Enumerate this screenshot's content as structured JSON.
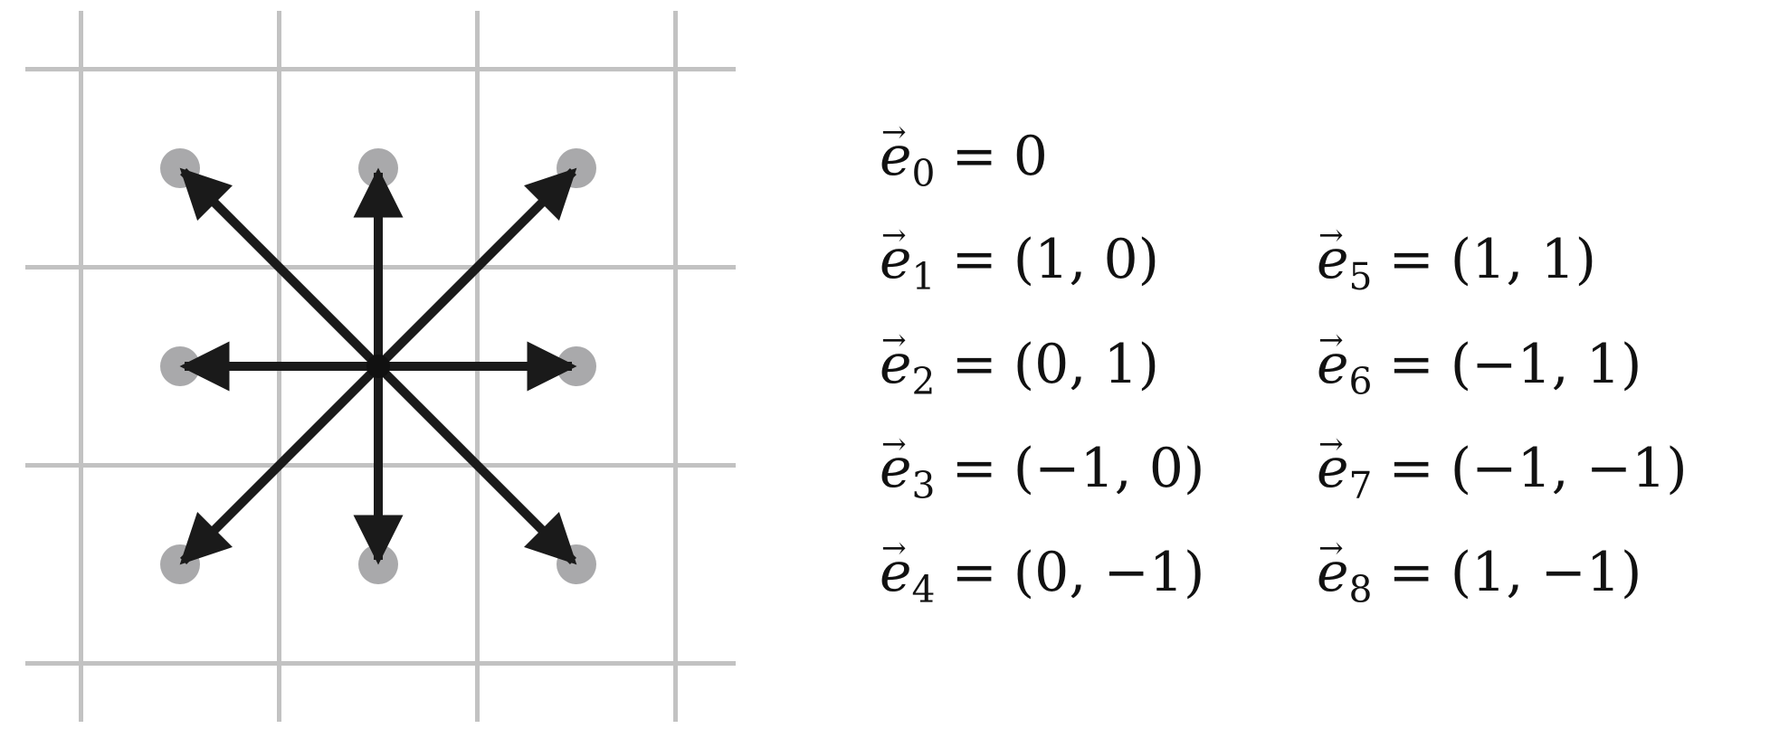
{
  "lattice": {
    "grid_lines_x": 4,
    "grid_lines_y": 4,
    "grid_color": "#c2c2c2",
    "node_color": "#a9a9ab",
    "arrow_color": "#1a1a1a",
    "center_color": "#111111"
  },
  "vectors": [
    {
      "id": 0,
      "symbol": "e",
      "arrow": "→",
      "sub": "0",
      "equals": "=",
      "value": "0"
    },
    {
      "id": 1,
      "symbol": "e",
      "arrow": "→",
      "sub": "1",
      "equals": "=",
      "value": "(1, 0)",
      "dx": 1,
      "dy": 0
    },
    {
      "id": 2,
      "symbol": "e",
      "arrow": "→",
      "sub": "2",
      "equals": "=",
      "value": "(0, 1)",
      "dx": 0,
      "dy": 1
    },
    {
      "id": 3,
      "symbol": "e",
      "arrow": "→",
      "sub": "3",
      "equals": "=",
      "value": "(−1, 0)",
      "dx": -1,
      "dy": 0
    },
    {
      "id": 4,
      "symbol": "e",
      "arrow": "→",
      "sub": "4",
      "equals": "=",
      "value": "(0, −1)",
      "dx": 0,
      "dy": -1
    },
    {
      "id": 5,
      "symbol": "e",
      "arrow": "→",
      "sub": "5",
      "equals": "=",
      "value": "(1, 1)",
      "dx": 1,
      "dy": 1
    },
    {
      "id": 6,
      "symbol": "e",
      "arrow": "→",
      "sub": "6",
      "equals": "=",
      "value": "(−1, 1)",
      "dx": -1,
      "dy": 1
    },
    {
      "id": 7,
      "symbol": "e",
      "arrow": "→",
      "sub": "7",
      "equals": "=",
      "value": "(−1, −1)",
      "dx": -1,
      "dy": -1
    },
    {
      "id": 8,
      "symbol": "e",
      "arrow": "→",
      "sub": "8",
      "equals": "=",
      "value": "(1, −1)",
      "dx": 1,
      "dy": -1
    }
  ]
}
